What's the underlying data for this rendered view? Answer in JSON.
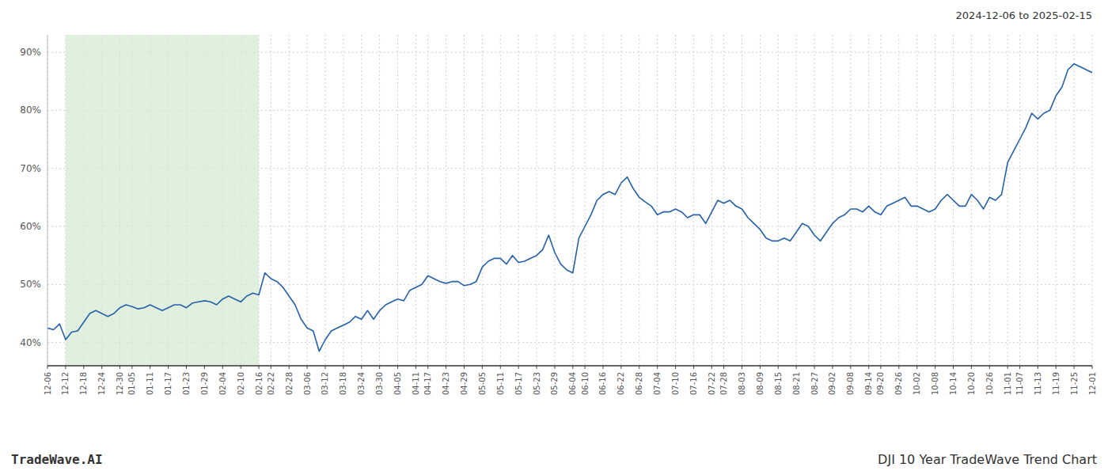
{
  "chart_data": {
    "type": "line",
    "title": "DJI 10 Year TradeWave Trend Chart",
    "subtitle": "2024-12-06 to 2025-02-15",
    "annotations": [
      "TradeWave.AI"
    ],
    "color": "#2461a8",
    "grid": true,
    "highlight": {
      "start": "12-12",
      "end": "02-16",
      "color": "#d4e8d0"
    },
    "ylim": [
      36,
      93
    ],
    "yticks": [
      {
        "value": 40,
        "label": "40%"
      },
      {
        "value": 50,
        "label": "50%"
      },
      {
        "value": 60,
        "label": "60%"
      },
      {
        "value": 70,
        "label": "70%"
      },
      {
        "value": 80,
        "label": "80%"
      },
      {
        "value": 90,
        "label": "90%"
      }
    ],
    "categories": [
      "12-06",
      null,
      null,
      "12-12",
      null,
      null,
      "12-18",
      null,
      null,
      "12-24",
      null,
      null,
      "12-30",
      null,
      "01-05",
      null,
      null,
      "01-11",
      null,
      null,
      "01-17",
      null,
      null,
      "01-23",
      null,
      null,
      "01-29",
      null,
      null,
      "02-04",
      null,
      null,
      "02-10",
      null,
      null,
      "02-16",
      null,
      "02-22",
      null,
      null,
      "02-28",
      null,
      null,
      "03-06",
      null,
      null,
      "03-12",
      null,
      null,
      "03-18",
      null,
      null,
      "03-24",
      null,
      null,
      "03-30",
      null,
      null,
      "04-05",
      null,
      null,
      "04-11",
      null,
      "04-17",
      null,
      null,
      "04-23",
      null,
      null,
      "04-29",
      null,
      null,
      "05-05",
      null,
      null,
      "05-11",
      null,
      null,
      "05-17",
      null,
      null,
      "05-23",
      null,
      null,
      "05-29",
      null,
      null,
      "06-04",
      null,
      "06-10",
      null,
      null,
      "06-16",
      null,
      null,
      "06-22",
      null,
      null,
      "06-28",
      null,
      null,
      "07-04",
      null,
      null,
      "07-10",
      null,
      null,
      "07-16",
      null,
      null,
      "07-22",
      null,
      "07-28",
      null,
      null,
      "08-03",
      null,
      null,
      "08-09",
      null,
      null,
      "08-15",
      null,
      null,
      "08-21",
      null,
      null,
      "08-27",
      null,
      null,
      "09-02",
      null,
      null,
      "09-08",
      null,
      null,
      "09-14",
      null,
      "09-20",
      null,
      null,
      "09-26",
      null,
      null,
      "10-02",
      null,
      null,
      "10-08",
      null,
      null,
      "10-14",
      null,
      null,
      "10-20",
      null,
      null,
      "10-26",
      null,
      null,
      "11-01",
      null,
      "11-07",
      null,
      null,
      "11-13",
      null,
      null,
      "11-19",
      null,
      null,
      "11-25",
      null,
      null,
      "12-01"
    ],
    "values": [
      42.5,
      42.2,
      43.2,
      40.5,
      41.8,
      42.0,
      43.5,
      45.0,
      45.5,
      45.0,
      44.5,
      45.0,
      46.0,
      46.5,
      46.2,
      45.8,
      46.0,
      46.5,
      46.0,
      45.5,
      46.0,
      46.5,
      46.5,
      46.0,
      46.8,
      47.0,
      47.2,
      47.0,
      46.5,
      47.5,
      48.0,
      47.5,
      47.0,
      48.0,
      48.5,
      48.2,
      52.0,
      51.0,
      50.5,
      49.5,
      48.0,
      46.5,
      44.0,
      42.5,
      42.0,
      38.5,
      40.5,
      42.0,
      42.5,
      43.0,
      43.5,
      44.5,
      44.0,
      45.5,
      44.0,
      45.5,
      46.5,
      47.0,
      47.5,
      47.2,
      49.0,
      49.5,
      50.0,
      51.5,
      51.0,
      50.5,
      50.2,
      50.5,
      50.5,
      49.8,
      50.0,
      50.5,
      53.0,
      54.0,
      54.5,
      54.5,
      53.5,
      55.0,
      53.8,
      54.0,
      54.5,
      55.0,
      56.0,
      58.5,
      55.5,
      53.5,
      52.5,
      52.0,
      58.0,
      60.0,
      62.0,
      64.5,
      65.5,
      66.0,
      65.5,
      67.5,
      68.5,
      66.5,
      65.0,
      64.2,
      63.5,
      62.0,
      62.5,
      62.5,
      63.0,
      62.5,
      61.5,
      62.0,
      62.0,
      60.5,
      62.5,
      64.5,
      64.0,
      64.5,
      63.5,
      63.0,
      61.5,
      60.5,
      59.5,
      58.0,
      57.5,
      57.5,
      58.0,
      57.5,
      59.0,
      60.5,
      60.0,
      58.5,
      57.5,
      59.0,
      60.5,
      61.5,
      62.0,
      63.0,
      63.0,
      62.5,
      63.5,
      62.5,
      62.0,
      63.5,
      64.0,
      64.5,
      65.0,
      63.5,
      63.5,
      63.0,
      62.5,
      63.0,
      64.5,
      65.5,
      64.5,
      63.5,
      63.5,
      65.5,
      64.5,
      63.0,
      65.0,
      64.5,
      65.5,
      71.0,
      73.0,
      75.0,
      77.0,
      79.5,
      78.5,
      79.5,
      80.0,
      82.5,
      84.0,
      87.0,
      88.0,
      87.5,
      87.0,
      86.5
    ]
  }
}
